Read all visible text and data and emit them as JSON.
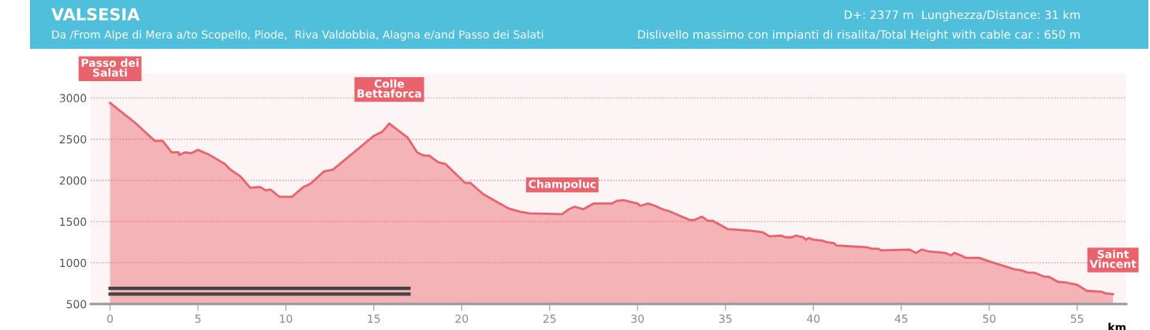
{
  "chart_data": {
    "type": "area",
    "title": "VALSESIA",
    "subtitle": "Da /From Alpe di Mera a/to Scopello, Piode,  Riva Valdobbia, Alagna e/and Passo dei Salati",
    "xlabel": "km",
    "annotations": [
      "D+: 2377 m  Lunghezza/Distance: 31 km",
      "Dislivello massimo con impianti di risalita/Total Height with cable car : 650 m",
      {
        "text": "Passo dei\nSalati",
        "x": 0,
        "y": 2940
      },
      {
        "text": "Colle\nBettaforca",
        "x": 15.88,
        "y": 2687
      },
      {
        "text": "Champoluc",
        "x": 25.72,
        "y": 1588
      },
      {
        "text": "Saint\nVincent",
        "x": 57.04,
        "y": 619
      }
    ],
    "series": [
      {
        "color": "#e8636b",
        "x": [
          0,
          1.42,
          2.54,
          2.99,
          3.5,
          3.9,
          3.93,
          4.27,
          4.62,
          5.0,
          5.65,
          6.53,
          6.85,
          7.41,
          7.97,
          8.53,
          8.85,
          9.12,
          9.64,
          10.34,
          11.0,
          11.4,
          12.17,
          12.68,
          15.0,
          15.48,
          15.88,
          16.92,
          17.47,
          17.88,
          18.16,
          18.67,
          19.07,
          20.19,
          20.49,
          21.24,
          21.99,
          22.66,
          23.33,
          23.85,
          25.72,
          26.09,
          26.42,
          26.91,
          27.51,
          28.55,
          28.81,
          29.19,
          30.0,
          30.15,
          30.6,
          31.01,
          31.54,
          31.76,
          32.96,
          33.25,
          33.67,
          34.0,
          34.27,
          35.12,
          36.39,
          37.13,
          37.51,
          38.18,
          38.4,
          38.78,
          38.99,
          39.43,
          39.58,
          39.73,
          40.03,
          40.48,
          40.78,
          41.16,
          41.31,
          42.06,
          43.03,
          43.33,
          43.7,
          43.85,
          45.48,
          45.85,
          46.15,
          46.52,
          47.49,
          47.84,
          48.01,
          48.39,
          48.69,
          49.43,
          50.1,
          50.85,
          51.46,
          51.82,
          52.2,
          52.57,
          53.16,
          53.39,
          53.91,
          54.43,
          54.58,
          54.88,
          55.03,
          55.55,
          56.37,
          56.6,
          57.04
        ],
        "values": [
          2940,
          2700,
          2480,
          2480,
          2340,
          2340,
          2310,
          2340,
          2330,
          2370,
          2310,
          2200,
          2130,
          2050,
          1910,
          1920,
          1880,
          1890,
          1800,
          1800,
          1920,
          1960,
          2110,
          2130,
          2540,
          2590,
          2690,
          2520,
          2340,
          2300,
          2300,
          2220,
          2200,
          1970,
          1970,
          1830,
          1740,
          1660,
          1620,
          1600,
          1590,
          1650,
          1680,
          1650,
          1720,
          1720,
          1750,
          1760,
          1720,
          1690,
          1720,
          1690,
          1640,
          1630,
          1520,
          1520,
          1560,
          1510,
          1510,
          1410,
          1390,
          1370,
          1320,
          1330,
          1310,
          1310,
          1330,
          1310,
          1280,
          1300,
          1280,
          1270,
          1250,
          1240,
          1210,
          1200,
          1190,
          1170,
          1170,
          1150,
          1160,
          1120,
          1160,
          1140,
          1120,
          1090,
          1120,
          1090,
          1060,
          1060,
          1010,
          960,
          920,
          910,
          880,
          880,
          830,
          830,
          770,
          760,
          750,
          740,
          730,
          660,
          650,
          630,
          620
        ]
      },
      {
        "type": "line",
        "color": "#444444",
        "x": [
          0,
          17
        ],
        "values": [
          690,
          690
        ]
      },
      {
        "type": "line",
        "color": "#444444",
        "x": [
          0,
          17
        ],
        "values": [
          620,
          620
        ]
      }
    ],
    "xlim": [
      -1.1,
      57.8
    ],
    "ylim": [
      500,
      3300
    ],
    "xticks": [
      0,
      5,
      10,
      15,
      20,
      25,
      30,
      35,
      40,
      45,
      50,
      55
    ],
    "yticks": [
      500,
      1000,
      1500,
      2000,
      2500,
      3000
    ],
    "grid": "y"
  }
}
